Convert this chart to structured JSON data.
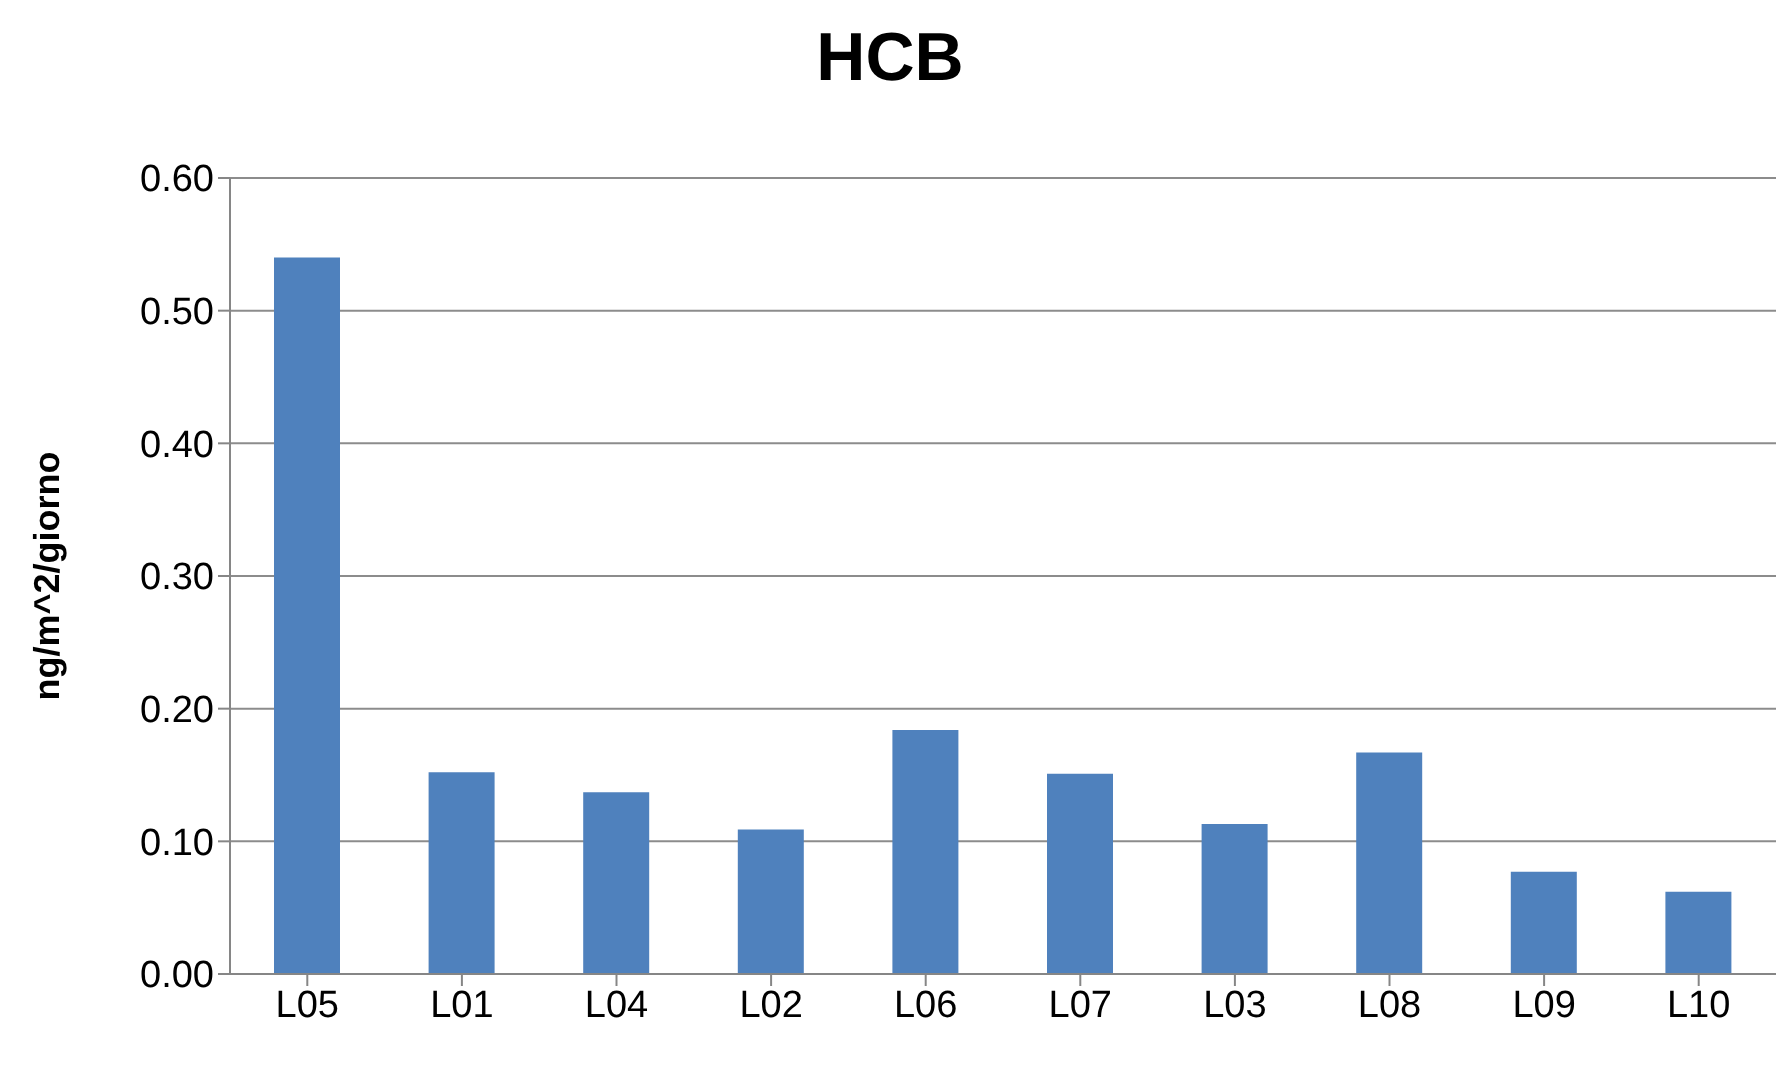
{
  "chart_data": {
    "type": "bar",
    "title": "HCB",
    "ylabel": "ng/m^2/giorno",
    "categories": [
      "L05",
      "L01",
      "L04",
      "L02",
      "L06",
      "L07",
      "L03",
      "L08",
      "L09",
      "L10"
    ],
    "values": [
      0.54,
      0.152,
      0.137,
      0.109,
      0.184,
      0.151,
      0.113,
      0.167,
      0.077,
      0.062
    ],
    "color": "#4f81bd",
    "ylim": [
      0,
      0.6
    ],
    "yticks": [
      {
        "value": 0,
        "label": "0.00"
      },
      {
        "value": 0.1,
        "label": "0.10"
      },
      {
        "value": 0.2,
        "label": "0.20"
      },
      {
        "value": 0.3,
        "label": "0.30"
      },
      {
        "value": 0.4,
        "label": "0.40"
      },
      {
        "value": 0.5,
        "label": "0.50"
      },
      {
        "value": 0.6,
        "label": "0.60"
      }
    ],
    "grid": "y"
  }
}
